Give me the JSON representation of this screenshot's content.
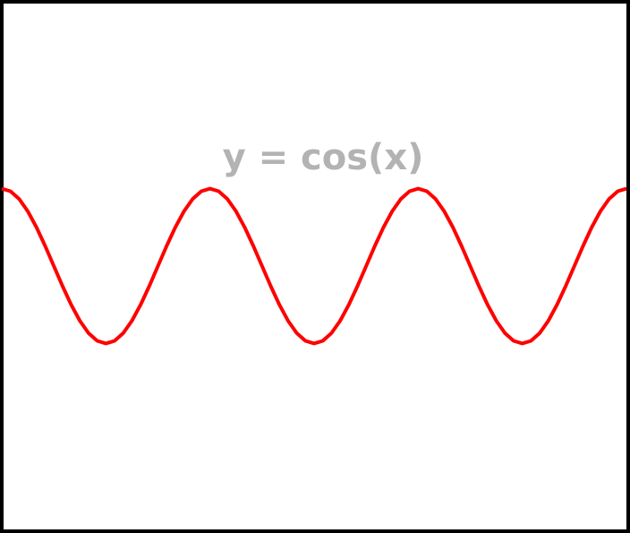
{
  "chart_data": {
    "type": "line",
    "title": "y = cos(x)",
    "color": "#ff0000",
    "x": [
      0,
      0.262,
      0.524,
      0.785,
      1.047,
      1.309,
      1.571,
      1.833,
      2.094,
      2.356,
      2.618,
      2.88,
      3.142,
      3.403,
      3.665,
      3.927,
      4.189,
      4.451,
      4.712,
      4.974,
      5.236,
      5.498,
      5.76,
      6.021,
      6.283,
      6.545,
      6.807,
      7.069,
      7.33,
      7.592,
      7.854,
      8.116,
      8.378,
      8.639,
      8.901,
      9.163,
      9.425,
      9.687,
      9.948,
      10.21,
      10.472,
      10.734,
      10.996,
      11.257,
      11.519,
      11.781,
      12.043,
      12.305,
      12.566,
      12.828,
      13.09,
      13.352,
      13.614,
      13.875,
      14.137,
      14.399,
      14.661,
      14.923,
      15.184,
      15.446,
      15.708,
      15.97,
      16.232,
      16.493,
      16.755,
      17.017,
      17.279,
      17.541,
      17.802,
      18.064,
      18.326,
      18.588,
      18.85
    ],
    "values": [
      1,
      0.966,
      0.866,
      0.707,
      0.5,
      0.259,
      0,
      -0.259,
      -0.5,
      -0.707,
      -0.866,
      -0.966,
      -1,
      -0.966,
      -0.866,
      -0.707,
      -0.5,
      -0.259,
      0,
      0.259,
      0.5,
      0.707,
      0.866,
      0.966,
      1,
      0.966,
      0.866,
      0.707,
      0.5,
      0.259,
      0,
      -0.259,
      -0.5,
      -0.707,
      -0.866,
      -0.966,
      -1,
      -0.966,
      -0.866,
      -0.707,
      -0.5,
      -0.259,
      0,
      0.259,
      0.5,
      0.707,
      0.866,
      0.966,
      1,
      0.966,
      0.866,
      0.707,
      0.5,
      0.259,
      0,
      -0.259,
      -0.5,
      -0.707,
      -0.866,
      -0.966,
      -1,
      -0.966,
      -0.866,
      -0.707,
      -0.5,
      -0.259,
      0,
      0.259,
      0.5,
      0.707,
      0.866,
      0.966,
      1
    ],
    "xlim": [
      0,
      18.85
    ],
    "ylim": [
      -3.39,
      3.39
    ]
  }
}
